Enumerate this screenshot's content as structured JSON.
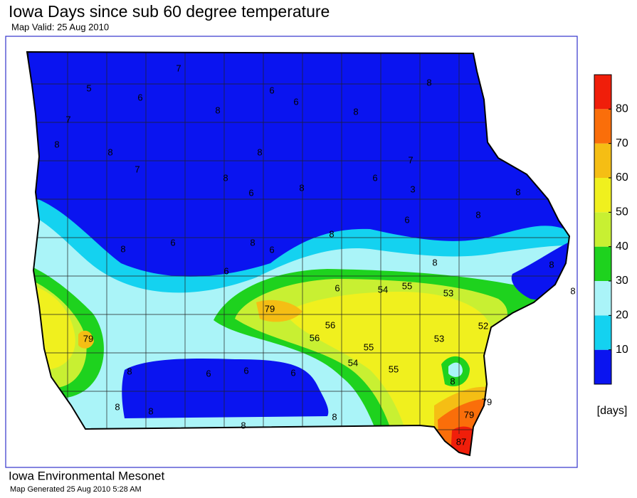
{
  "header": {
    "title": "Iowa Days since sub 60 degree temperature",
    "subtitle": "Map Valid: 25 Aug 2010"
  },
  "stations": {
    "values": [
      7,
      5,
      6,
      6,
      6,
      8,
      8,
      8,
      7,
      8,
      8,
      8,
      7,
      7,
      8,
      6,
      8,
      6,
      3,
      8,
      6,
      8,
      8,
      6,
      8,
      8,
      6,
      6,
      8,
      8,
      8,
      6,
      54,
      55,
      53,
      79,
      56,
      56,
      52,
      79,
      53,
      55,
      54,
      55,
      8,
      6,
      6,
      6,
      8,
      8,
      8,
      8,
      8,
      79,
      79,
      87
    ]
  },
  "legend": {
    "ticks": [
      10,
      20,
      30,
      40,
      50,
      60,
      70,
      80
    ],
    "lim": [
      0,
      90
    ],
    "label": "[days]",
    "colors": [
      "#0a14f0",
      "#14d2f0",
      "#aaf4f8",
      "#1ed21e",
      "#c8f032",
      "#f0f01e",
      "#f5be14",
      "#fa6e0a",
      "#f01e0a"
    ]
  },
  "footer": {
    "title": "Iowa Environmental Mesonet",
    "subtitle": "Map Generated 25 Aug 2010 5:28 AM"
  }
}
